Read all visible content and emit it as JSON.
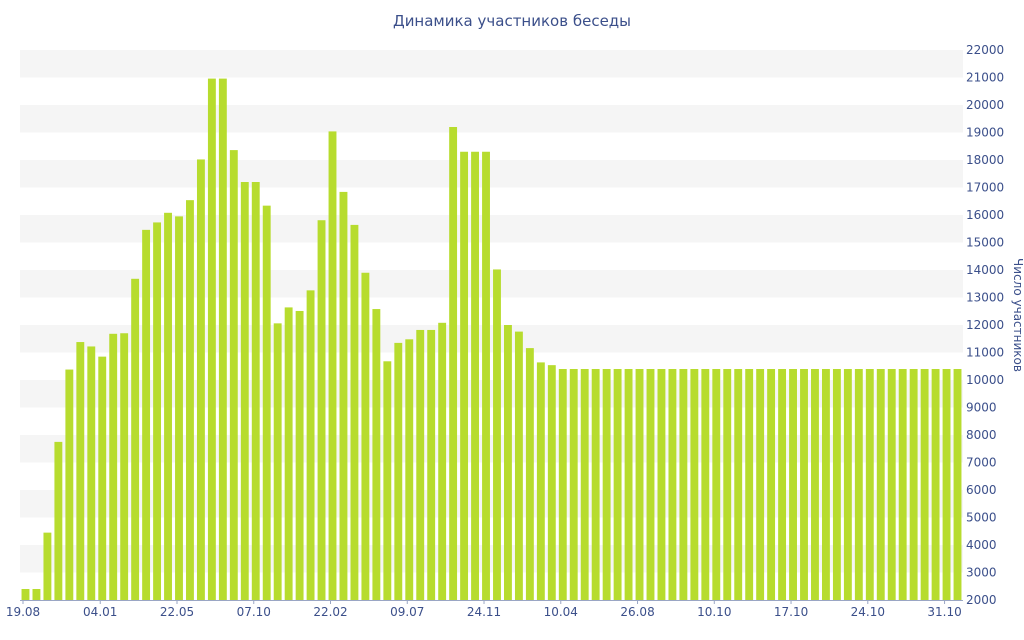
{
  "chart_data": {
    "type": "bar",
    "title": "Динамика участников беседы",
    "ylabel": "Число участников",
    "ylim": [
      2000,
      22000
    ],
    "yticks": [
      2000,
      3000,
      4000,
      5000,
      6000,
      7000,
      8000,
      9000,
      10000,
      11000,
      12000,
      13000,
      14000,
      15000,
      16000,
      17000,
      18000,
      19000,
      20000,
      21000,
      22000
    ],
    "y_axis_side": "right",
    "grid": "alternating horizontal bands",
    "xtick_labels": [
      "19.08",
      "04.01",
      "22.05",
      "07.10",
      "22.02",
      "09.07",
      "24.11",
      "10.04",
      "26.08",
      "10.10",
      "17.10",
      "24.10",
      "31.10"
    ],
    "values": [
      2400,
      2400,
      4450,
      7750,
      10380,
      11380,
      11220,
      10850,
      11680,
      11700,
      13680,
      15460,
      15730,
      16080,
      15950,
      16540,
      18020,
      20960,
      20960,
      18360,
      17200,
      17200,
      16340,
      12060,
      12640,
      12510,
      13260,
      15810,
      19040,
      16840,
      15640,
      13900,
      12580,
      10680,
      11350,
      11480,
      11820,
      11820,
      12080,
      19200,
      18300,
      18300,
      18300,
      14020,
      12000,
      11760,
      11160,
      10640,
      10540,
      10400,
      10400,
      10400,
      10400,
      10400,
      10400,
      10400,
      10400,
      10400,
      10400,
      10400,
      10400,
      10400,
      10400,
      10400,
      10400,
      10400,
      10400,
      10400,
      10400,
      10400,
      10400,
      10400,
      10400,
      10400,
      10400,
      10400,
      10400,
      10400,
      10400,
      10400,
      10400,
      10400,
      10400,
      10400,
      10400,
      10400
    ],
    "bar_color": "#b7dc2e",
    "band_color": "#f5f5f5"
  }
}
